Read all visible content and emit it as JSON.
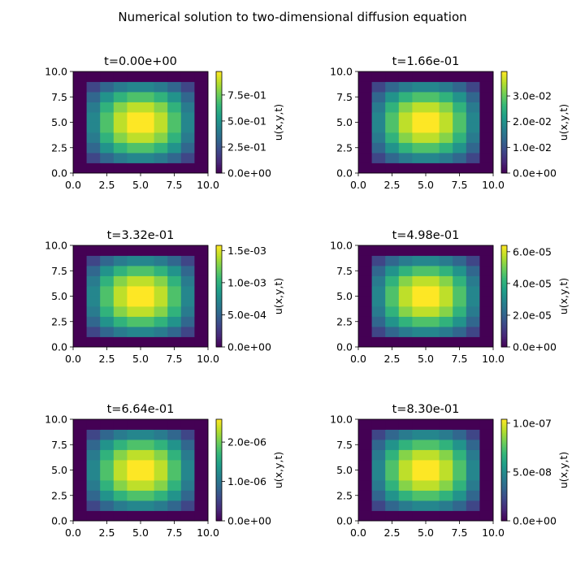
{
  "figure": {
    "title": "Numerical solution to two-dimensional diffusion equation"
  },
  "chart_data": [
    {
      "type": "heatmap",
      "title": "t=0.00e+00",
      "xlim": [
        0.0,
        10.0
      ],
      "ylim": [
        0.0,
        10.0
      ],
      "x_ticks": [
        "0.0",
        "2.5",
        "5.0",
        "7.5",
        "10.0"
      ],
      "y_ticks": [
        "0.0",
        "2.5",
        "5.0",
        "7.5",
        "10.0"
      ],
      "grid_size": 10,
      "colormap": "viridis",
      "colorbar": {
        "label": "u(x,y,t)",
        "min": 0.0,
        "max": 0.9755,
        "ticks": [
          0.0,
          0.25,
          0.5,
          0.75
        ],
        "tick_labels": [
          "0.0e+00",
          "2.5e-01",
          "5.0e-01",
          "7.5e-01"
        ]
      },
      "field": "sin(pi*x/10)*sin(pi*y/10) sampled on 10x10 grid, peak normalized 1.0"
    },
    {
      "type": "heatmap",
      "title": "t=1.66e-01",
      "xlim": [
        0.0,
        10.0
      ],
      "ylim": [
        0.0,
        10.0
      ],
      "x_ticks": [
        "0.0",
        "2.5",
        "5.0",
        "7.5",
        "10.0"
      ],
      "y_ticks": [
        "0.0",
        "2.5",
        "5.0",
        "7.5",
        "10.0"
      ],
      "grid_size": 10,
      "colormap": "viridis",
      "colorbar": {
        "label": "u(x,y,t)",
        "min": 0.0,
        "max": 0.0395,
        "ticks": [
          0.0,
          0.01,
          0.02,
          0.03
        ],
        "tick_labels": [
          "0.0e+00",
          "1.0e-02",
          "2.0e-02",
          "3.0e-02"
        ]
      }
    },
    {
      "type": "heatmap",
      "title": "t=3.32e-01",
      "xlim": [
        0.0,
        10.0
      ],
      "ylim": [
        0.0,
        10.0
      ],
      "x_ticks": [
        "0.0",
        "2.5",
        "5.0",
        "7.5",
        "10.0"
      ],
      "y_ticks": [
        "0.0",
        "2.5",
        "5.0",
        "7.5",
        "10.0"
      ],
      "grid_size": 10,
      "colormap": "viridis",
      "colorbar": {
        "label": "u(x,y,t)",
        "min": 0.0,
        "max": 0.00158,
        "ticks": [
          0.0,
          0.0005,
          0.001,
          0.0015
        ],
        "tick_labels": [
          "0.0e+00",
          "5.0e-04",
          "1.0e-03",
          "1.5e-03"
        ]
      }
    },
    {
      "type": "heatmap",
      "title": "t=4.98e-01",
      "xlim": [
        0.0,
        10.0
      ],
      "ylim": [
        0.0,
        10.0
      ],
      "x_ticks": [
        "0.0",
        "2.5",
        "5.0",
        "7.5",
        "10.0"
      ],
      "y_ticks": [
        "0.0",
        "2.5",
        "5.0",
        "7.5",
        "10.0"
      ],
      "grid_size": 10,
      "colormap": "viridis",
      "colorbar": {
        "label": "u(x,y,t)",
        "min": 0.0,
        "max": 6.4e-05,
        "ticks": [
          0.0,
          2e-05,
          4e-05,
          6e-05
        ],
        "tick_labels": [
          "0.0e+00",
          "2.0e-05",
          "4.0e-05",
          "6.0e-05"
        ]
      }
    },
    {
      "type": "heatmap",
      "title": "t=6.64e-01",
      "xlim": [
        0.0,
        10.0
      ],
      "ylim": [
        0.0,
        10.0
      ],
      "x_ticks": [
        "0.0",
        "2.5",
        "5.0",
        "7.5",
        "10.0"
      ],
      "y_ticks": [
        "0.0",
        "2.5",
        "5.0",
        "7.5",
        "10.0"
      ],
      "grid_size": 10,
      "colormap": "viridis",
      "colorbar": {
        "label": "u(x,y,t)",
        "min": 0.0,
        "max": 2.58e-06,
        "ticks": [
          0.0,
          1e-06,
          2e-06
        ],
        "tick_labels": [
          "0.0e+00",
          "1.0e-06",
          "2.0e-06"
        ]
      }
    },
    {
      "type": "heatmap",
      "title": "t=8.30e-01",
      "xlim": [
        0.0,
        10.0
      ],
      "ylim": [
        0.0,
        10.0
      ],
      "x_ticks": [
        "0.0",
        "2.5",
        "5.0",
        "7.5",
        "10.0"
      ],
      "y_ticks": [
        "0.0",
        "2.5",
        "5.0",
        "7.5",
        "10.0"
      ],
      "grid_size": 10,
      "colormap": "viridis",
      "colorbar": {
        "label": "u(x,y,t)",
        "min": 0.0,
        "max": 1.04e-07,
        "ticks": [
          0.0,
          5e-08,
          1e-07
        ],
        "tick_labels": [
          "0.0e+00",
          "5.0e-08",
          "1.0e-07"
        ]
      }
    }
  ],
  "colors": {
    "viridis_stops": [
      "#440154",
      "#482878",
      "#3e4989",
      "#31688e",
      "#26828e",
      "#1f9e89",
      "#35b779",
      "#6ece58",
      "#b5de2b",
      "#fde725"
    ]
  }
}
